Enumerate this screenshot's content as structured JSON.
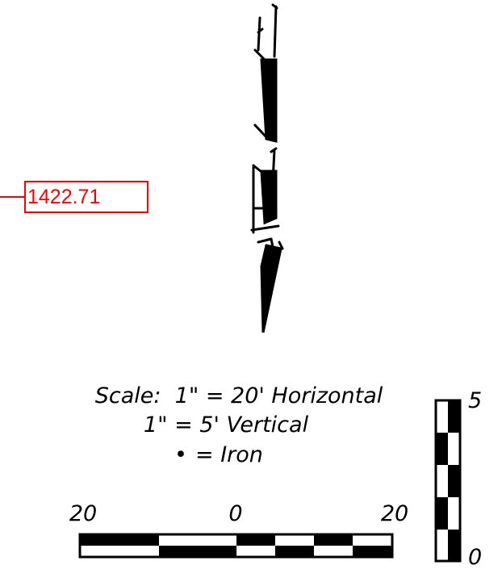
{
  "elevation_label": {
    "value": "1422.71",
    "color": "#ff0000"
  },
  "legend": {
    "scale_line": "Scale:  1\" = 20' Horizontal",
    "vertical_line": "1\" = 5' Vertical",
    "iron_symbol": "•",
    "iron_line": "= Iron"
  },
  "horizontal_scale": {
    "left_label": "20",
    "center_label": "0",
    "right_label": "20"
  },
  "vertical_scale": {
    "top_label": "5",
    "bottom_label": "0"
  },
  "colors": {
    "ink": "#000000",
    "annotation": "#ff0000",
    "background": "#ffffff"
  }
}
